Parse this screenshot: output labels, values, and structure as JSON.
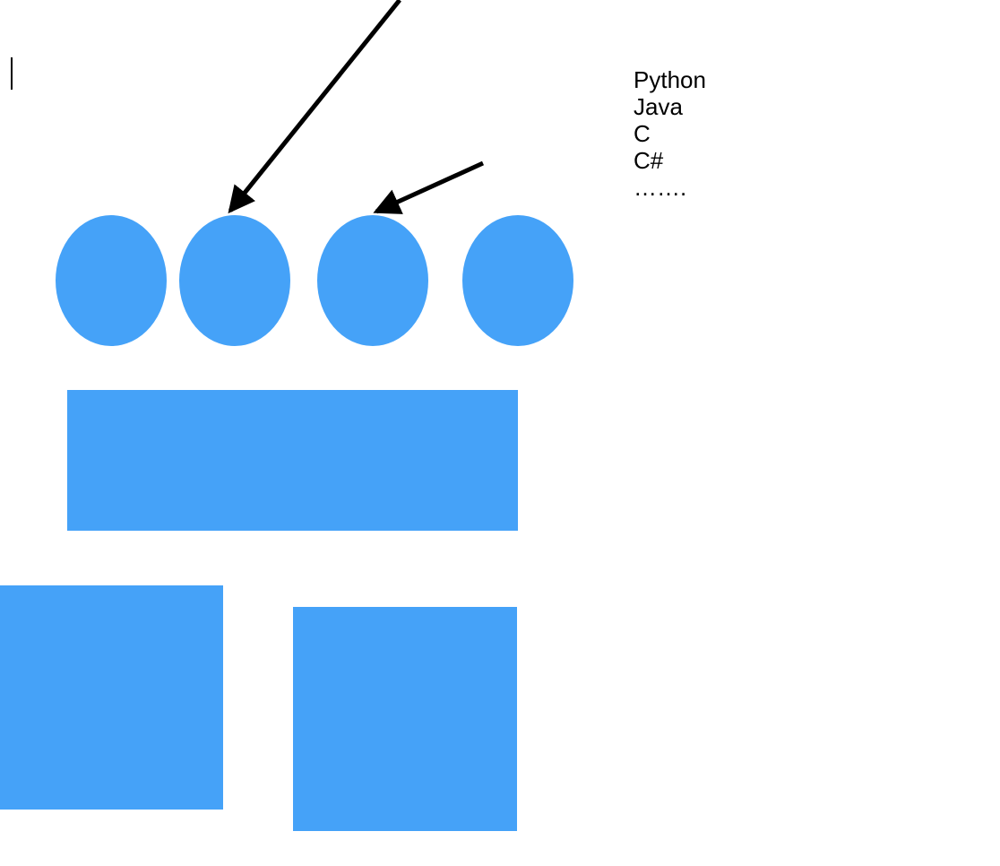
{
  "colors": {
    "shape_fill": "#45A2F8",
    "arrow": "#000000",
    "text": "#000000",
    "background": "#FFFFFF"
  },
  "languages": {
    "items": [
      "Python",
      "Java",
      "C",
      "C#",
      "……."
    ]
  }
}
